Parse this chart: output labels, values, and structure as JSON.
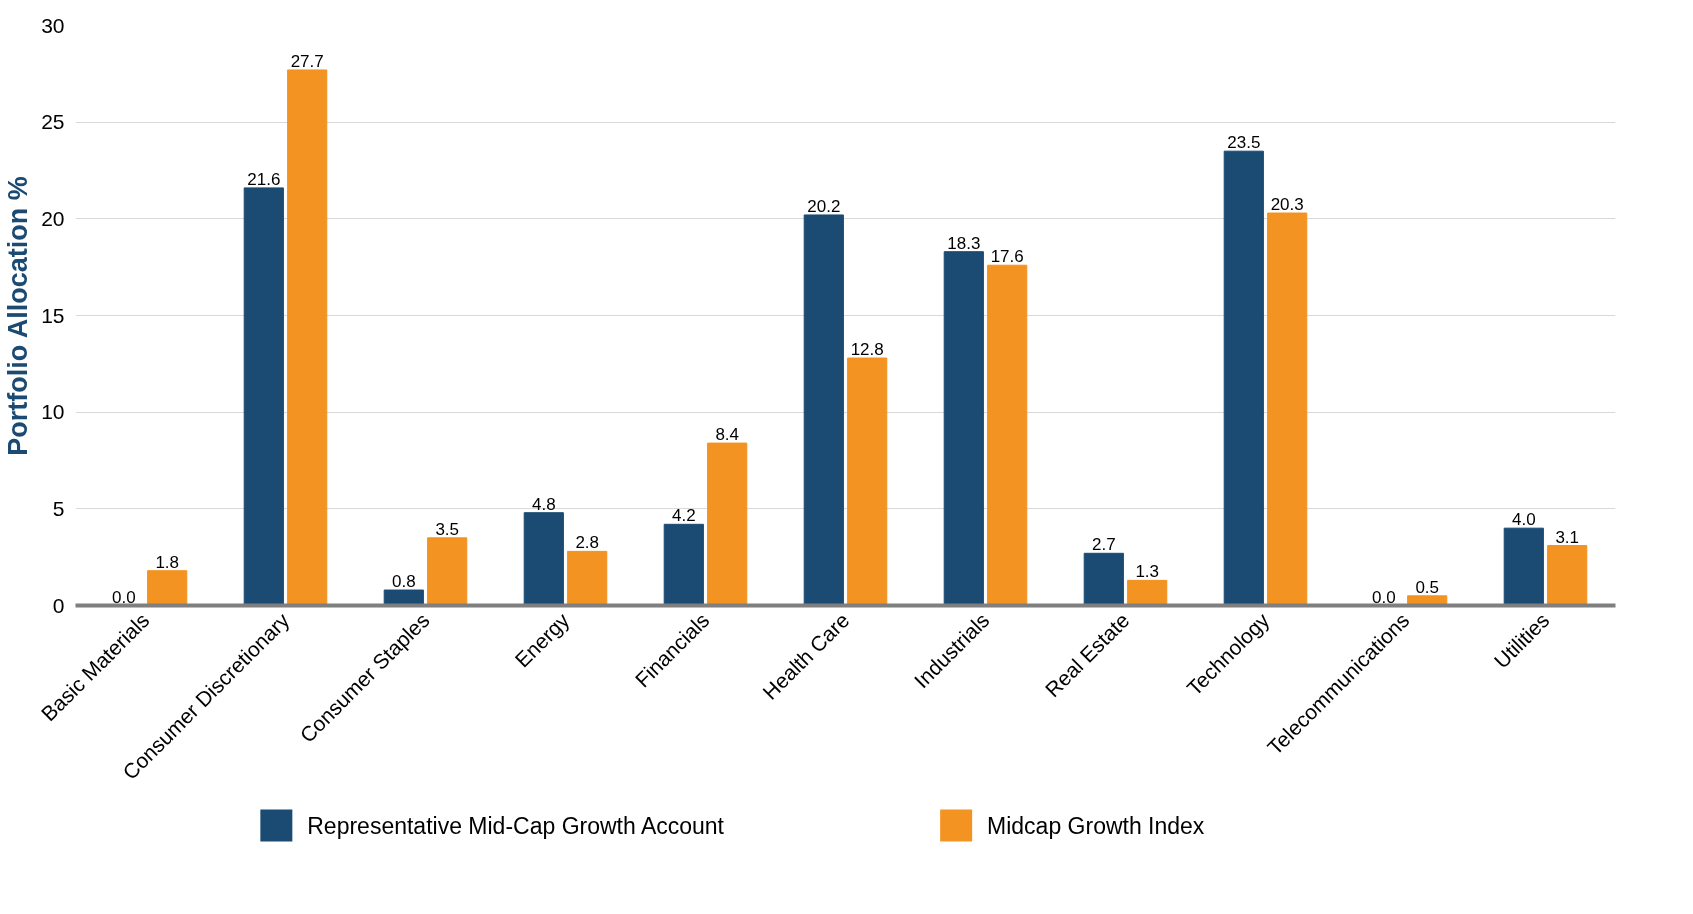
{
  "chart_data": {
    "type": "bar",
    "ylabel": "Portfolio Allocation %",
    "categories": [
      "Basic Materials",
      "Consumer Discretionary",
      "Consumer Staples",
      "Energy",
      "Financials",
      "Health Care",
      "Industrials",
      "Real Estate",
      "Technology",
      "Telecommunications",
      "Utilities"
    ],
    "series": [
      {
        "name": "Representative Mid-Cap Growth Account",
        "color": "#1b4a72",
        "values": [
          0.0,
          21.6,
          0.8,
          4.8,
          4.2,
          20.2,
          18.3,
          2.7,
          23.5,
          0.0,
          4.0
        ],
        "value_labels": [
          "0.0",
          "21.6",
          "0.8",
          "4.8",
          "4.2",
          "20.2",
          "18.3",
          "2.7",
          "23.5",
          "0.0",
          "4.0"
        ]
      },
      {
        "name": "Midcap Growth Index",
        "color": "#f39322",
        "values": [
          1.8,
          27.7,
          3.5,
          2.8,
          8.4,
          12.8,
          17.6,
          1.3,
          20.3,
          0.5,
          3.1
        ],
        "value_labels": [
          "1.8",
          "27.7",
          "3.5",
          "2.8",
          "8.4",
          "12.8",
          "17.6",
          "1.3",
          "20.3",
          "0.5",
          "3.1"
        ]
      }
    ],
    "ylim": [
      0,
      30
    ],
    "yticks": [
      0,
      5,
      10,
      15,
      20,
      25,
      30
    ],
    "grid": "y",
    "legend": "bottom"
  }
}
